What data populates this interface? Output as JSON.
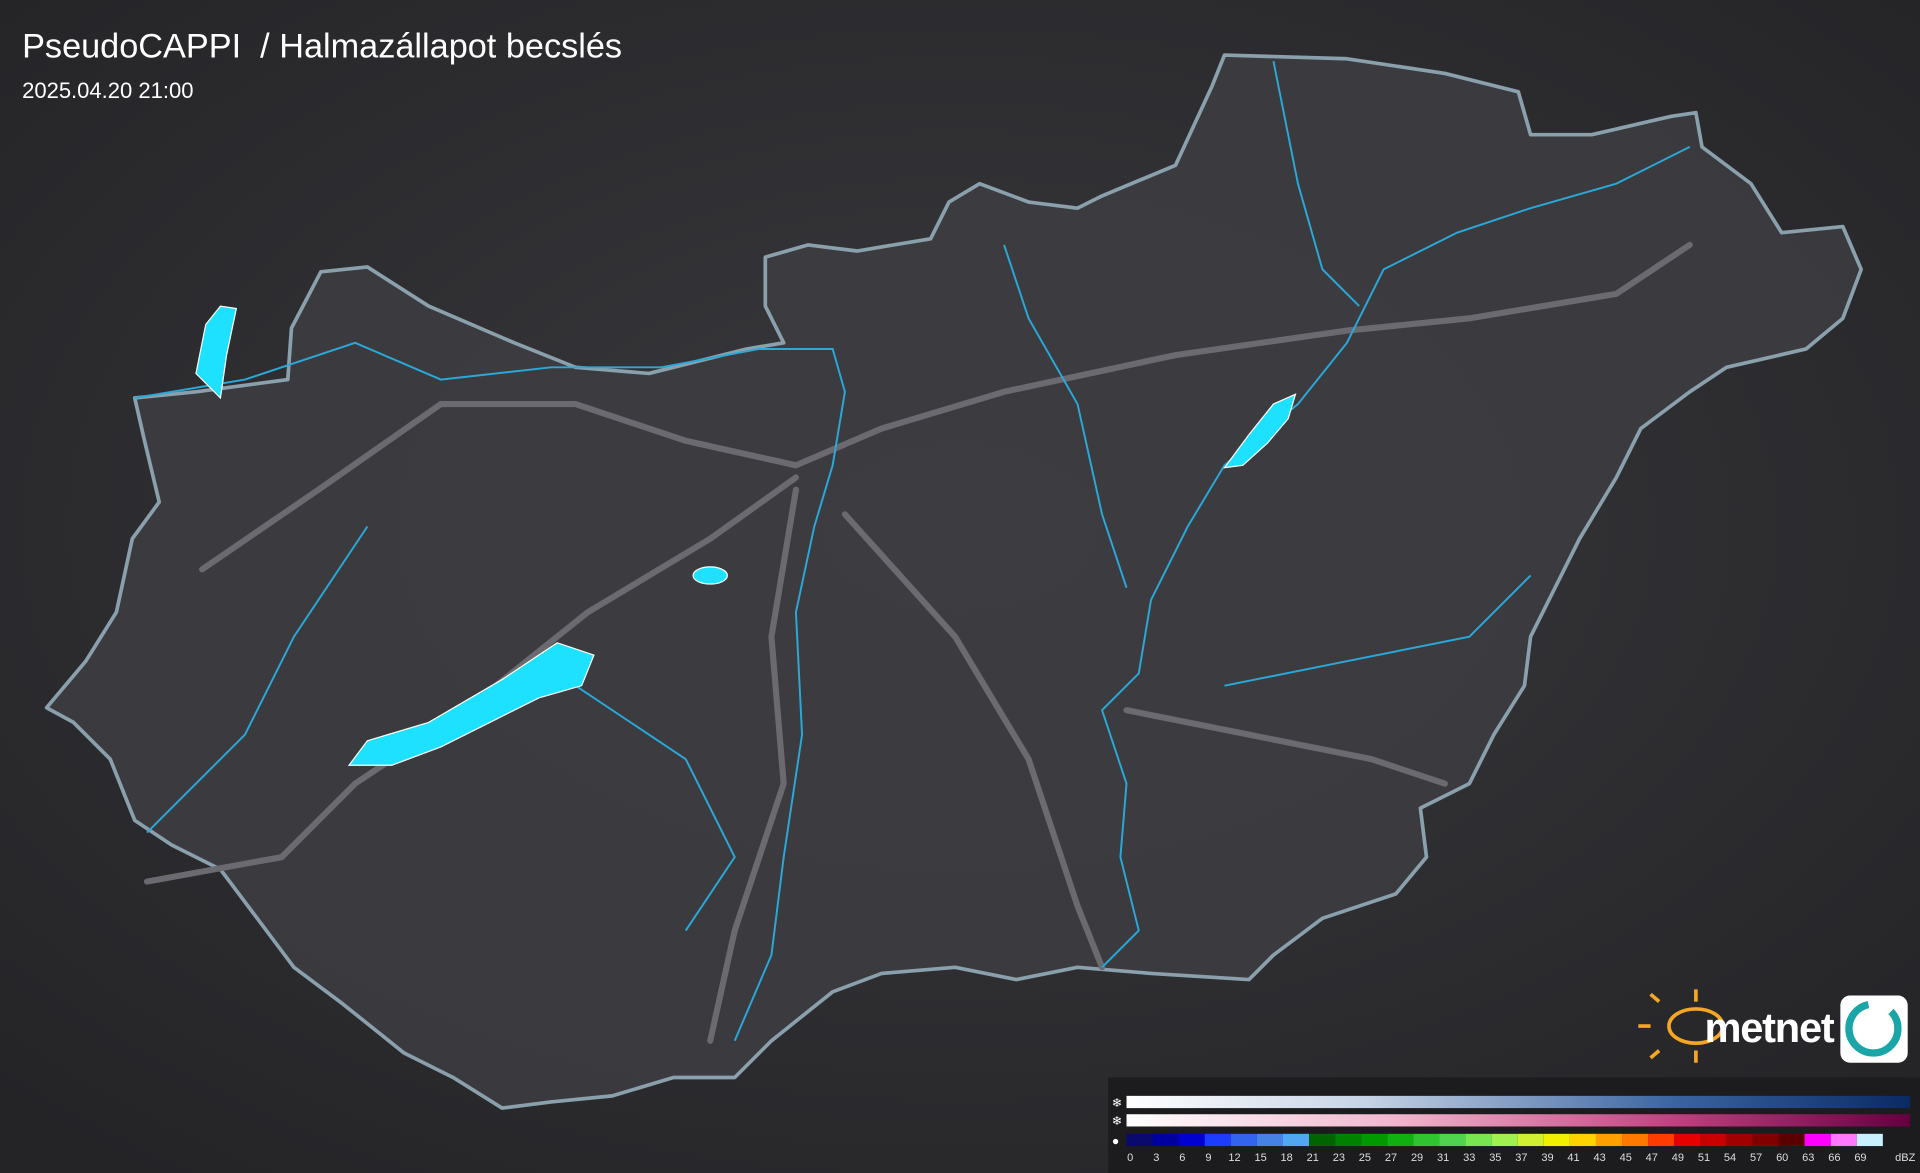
{
  "header": {
    "title": "PseudoCAPPI  / Halmazállapot becslés",
    "timestamp": "2025.04.20 21:00"
  },
  "legend": {
    "ticks": [
      0,
      3,
      6,
      9,
      12,
      15,
      18,
      21,
      23,
      25,
      27,
      29,
      31,
      33,
      35,
      37,
      39,
      41,
      43,
      45,
      47,
      49,
      51,
      54,
      57,
      60,
      63,
      66,
      69
    ],
    "unit": "dBZ",
    "rain_colors": [
      "#0a0a6e",
      "#0000a0",
      "#0000d0",
      "#1e3cff",
      "#3264f0",
      "#4682e6",
      "#50a8f0",
      "#006400",
      "#008200",
      "#009a00",
      "#10b010",
      "#30c430",
      "#50d450",
      "#78e650",
      "#a0f050",
      "#d2f032",
      "#f0f000",
      "#ffd200",
      "#ffa000",
      "#ff7800",
      "#ff3c00",
      "#e60000",
      "#c80000",
      "#a00000",
      "#800000",
      "#5a0000",
      "#ff00ff",
      "#ff78ff",
      "#c8f0ff"
    ]
  },
  "logo": {
    "text": "metnet"
  }
}
